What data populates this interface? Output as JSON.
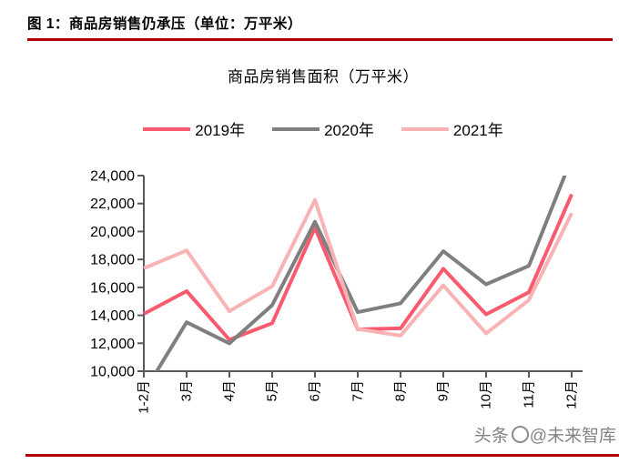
{
  "figure": {
    "caption": "图 1：商品房销售仍承压（单位：万平米）",
    "rule_color": "#b20000"
  },
  "watermark": {
    "prefix": "头条",
    "handle": "@未来智库"
  },
  "axis_color": "#595959",
  "chart_data": {
    "type": "line",
    "title": "商品房销售面积（万平米）",
    "categories": [
      "1-2月",
      "3月",
      "4月",
      "5月",
      "6月",
      "7月",
      "8月",
      "9月",
      "10月",
      "11月",
      "12月"
    ],
    "series": [
      {
        "name": "2019年",
        "color": "#fa5a6e",
        "values": [
          14102,
          15727,
          12256,
          13433,
          20268,
          12997,
          13066,
          17330,
          14072,
          15654,
          22653
        ]
      },
      {
        "name": "2020年",
        "color": "#7f7f7f",
        "values": [
          8475,
          13503,
          11995,
          14730,
          20701,
          14227,
          14855,
          18587,
          16221,
          17540,
          25252
        ]
      },
      {
        "name": "2021年",
        "color": "#fab3b5",
        "values": [
          17363,
          18644,
          14298,
          16078,
          22252,
          13013,
          12545,
          16139,
          12709,
          15090,
          21302
        ]
      }
    ],
    "ylim": [
      10000,
      24000
    ],
    "ytick_step": 2000,
    "ytick_labels": [
      "10,000",
      "12,000",
      "14,000",
      "16,000",
      "18,000",
      "20,000",
      "22,000",
      "24,000"
    ],
    "grid": false,
    "legend_position": "top",
    "note": "values outside ylim are clipped at plot edges"
  }
}
